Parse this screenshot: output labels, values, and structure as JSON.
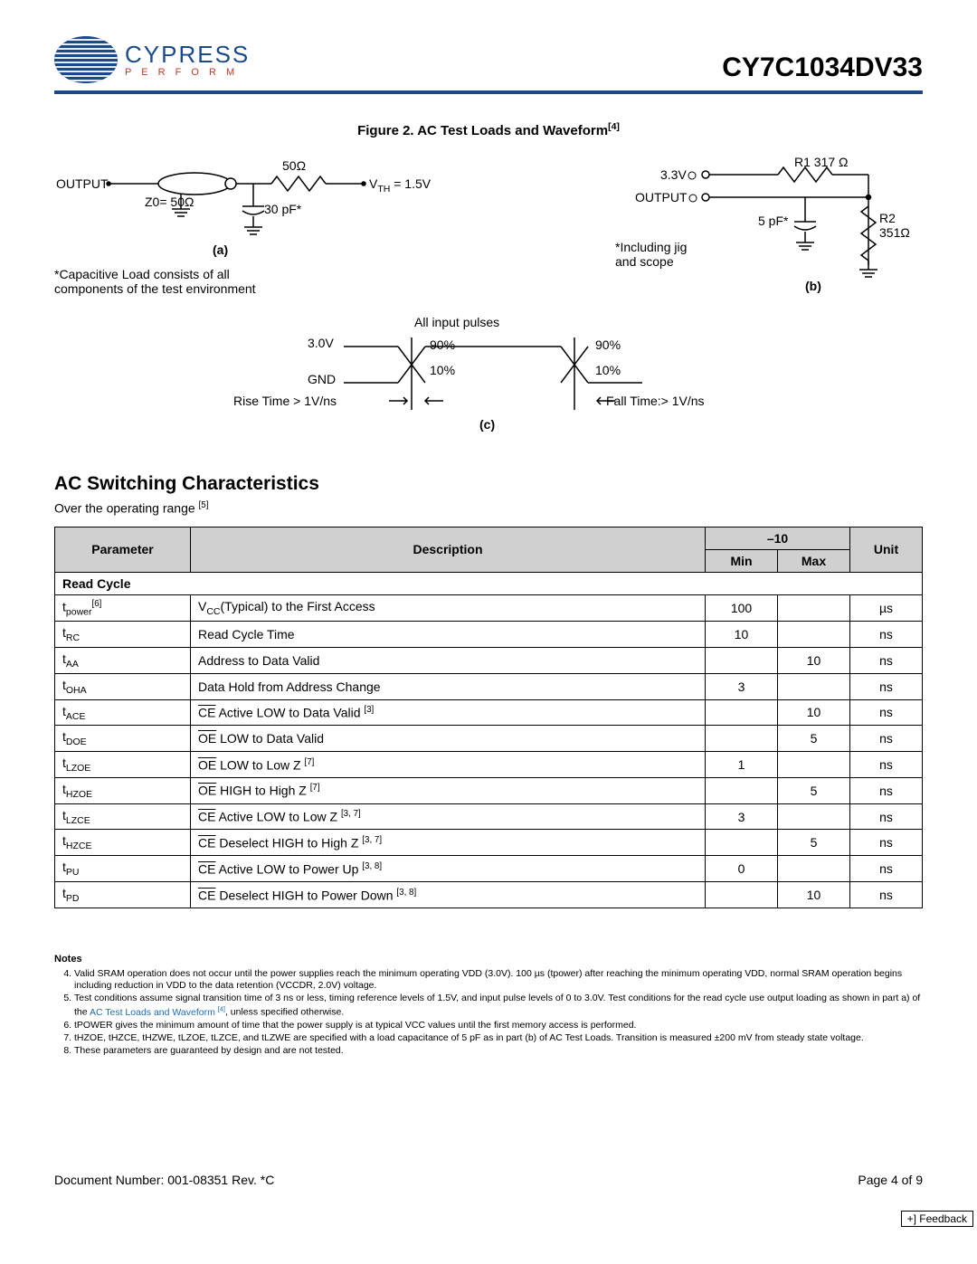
{
  "header": {
    "brand": "CYPRESS",
    "tagline": "P E R F O R M",
    "part_number": "CY7C1034DV33"
  },
  "figure": {
    "title_prefix": "Figure 2.  ",
    "title": "AC Test Loads and Waveform",
    "title_ref": "[4]",
    "circuit_a": {
      "output_label": "OUTPUT",
      "z0": "Z0= 50Ω",
      "r_series": "50Ω",
      "vth": "VTH = 1.5V",
      "cap": "30 pF*",
      "sublabel": "(a)",
      "footnote": "*Capacitive Load consists of all\ncomponents of the test environment"
    },
    "circuit_b": {
      "v33": "3.3V",
      "output_label": "OUTPUT",
      "r1": "R1 317 Ω",
      "r2": "R2\n351Ω",
      "cap": "5 pF*",
      "note": "*Including jig\nand scope",
      "sublabel": "(b)"
    },
    "waveform": {
      "vhigh": "3.0V",
      "gnd": "GND",
      "title": "All input pulses",
      "p90a": "90%",
      "p10a": "10%",
      "p90b": "90%",
      "p10b": "10%",
      "rise": "Rise Time > 1V/ns",
      "fall": "Fall Time:> 1V/ns",
      "sublabel": "(c)"
    }
  },
  "section": {
    "title": "AC Switching Characteristics",
    "subhead": "Over the operating range ",
    "subhead_ref": "[5]"
  },
  "table": {
    "columns": {
      "param": "Parameter",
      "desc": "Description",
      "group": "–10",
      "min": "Min",
      "max": "Max",
      "unit": "Unit"
    },
    "section_label": "Read Cycle",
    "rows": [
      {
        "param_base": "t",
        "param_sub": "power",
        "param_ref": "[6]",
        "desc_pre": "V",
        "desc_sub1": "CC",
        "desc_post": "(Typical) to the First Access",
        "min": "100",
        "max": "",
        "unit": "µs"
      },
      {
        "param_base": "t",
        "param_sub": "RC",
        "desc_plain": "Read Cycle Time",
        "min": "10",
        "max": "",
        "unit": "ns"
      },
      {
        "param_base": "t",
        "param_sub": "AA",
        "desc_plain": "Address to Data Valid",
        "min": "",
        "max": "10",
        "unit": "ns"
      },
      {
        "param_base": "t",
        "param_sub": "OHA",
        "desc_plain": "Data Hold from Address Change",
        "min": "3",
        "max": "",
        "unit": "ns"
      },
      {
        "param_base": "t",
        "param_sub": "ACE",
        "desc_over": "CE",
        "desc_post": " Active LOW to Data Valid ",
        "desc_ref": "[3]",
        "min": "",
        "max": "10",
        "unit": "ns"
      },
      {
        "param_base": "t",
        "param_sub": "DOE",
        "desc_over": "OE",
        "desc_post": " LOW to Data Valid",
        "min": "",
        "max": "5",
        "unit": "ns"
      },
      {
        "param_base": "t",
        "param_sub": "LZOE",
        "desc_over": "OE",
        "desc_post": " LOW to Low Z ",
        "desc_ref": "[7]",
        "min": "1",
        "max": "",
        "unit": "ns"
      },
      {
        "param_base": "t",
        "param_sub": "HZOE",
        "desc_over": "OE",
        "desc_post": " HIGH to High Z ",
        "desc_ref": "[7]",
        "min": "",
        "max": "5",
        "unit": "ns"
      },
      {
        "param_base": "t",
        "param_sub": "LZCE",
        "desc_over": "CE",
        "desc_post": " Active LOW to Low Z ",
        "desc_ref": "[3, 7]",
        "min": "3",
        "max": "",
        "unit": "ns"
      },
      {
        "param_base": "t",
        "param_sub": "HZCE",
        "desc_over": "CE",
        "desc_post": " Deselect HIGH to High Z ",
        "desc_ref": "[3, 7]",
        "min": "",
        "max": "5",
        "unit": "ns"
      },
      {
        "param_base": "t",
        "param_sub": "PU",
        "desc_over": "CE",
        "desc_post": " Active LOW to Power Up ",
        "desc_ref": "[3, 8]",
        "min": "0",
        "max": "",
        "unit": "ns"
      },
      {
        "param_base": "t",
        "param_sub": "PD",
        "desc_over": "CE",
        "desc_post": " Deselect HIGH to Power Down ",
        "desc_ref": "[3, 8]",
        "min": "",
        "max": "10",
        "unit": "ns"
      }
    ]
  },
  "notes": {
    "header": "Notes",
    "items": [
      "Valid SRAM operation does not occur until the power supplies reach the minimum operating VDD (3.0V). 100 µs (tpower) after reaching the minimum operating VDD, normal SRAM operation begins including reduction in VDD to the data retention (VCCDR, 2.0V) voltage.",
      "Test conditions assume signal transition time of 3 ns or less, timing reference levels of 1.5V, and input pulse levels of 0 to 3.0V. Test conditions for the read cycle use output loading as shown in part a) of the ",
      "tPOWER gives the minimum amount of time that the power supply is at typical VCC values until the first memory access is performed.",
      "tHZOE, tHZCE, tHZWE, tLZOE, tLZCE, and tLZWE are specified with a load capacitance of 5 pF as in part (b) of AC Test Loads. Transition is measured ±200 mV from steady state voltage.",
      "These parameters are guaranteed by design and are not tested."
    ],
    "link_text": "AC Test Loads and Waveform ",
    "link_ref": "[4]",
    "link_tail": ", unless specified otherwise."
  },
  "footer": {
    "doc": "Document Number: 001-08351 Rev. *C",
    "page": "Page 4 of 9"
  },
  "feedback": {
    "label": "+] Feedback"
  }
}
